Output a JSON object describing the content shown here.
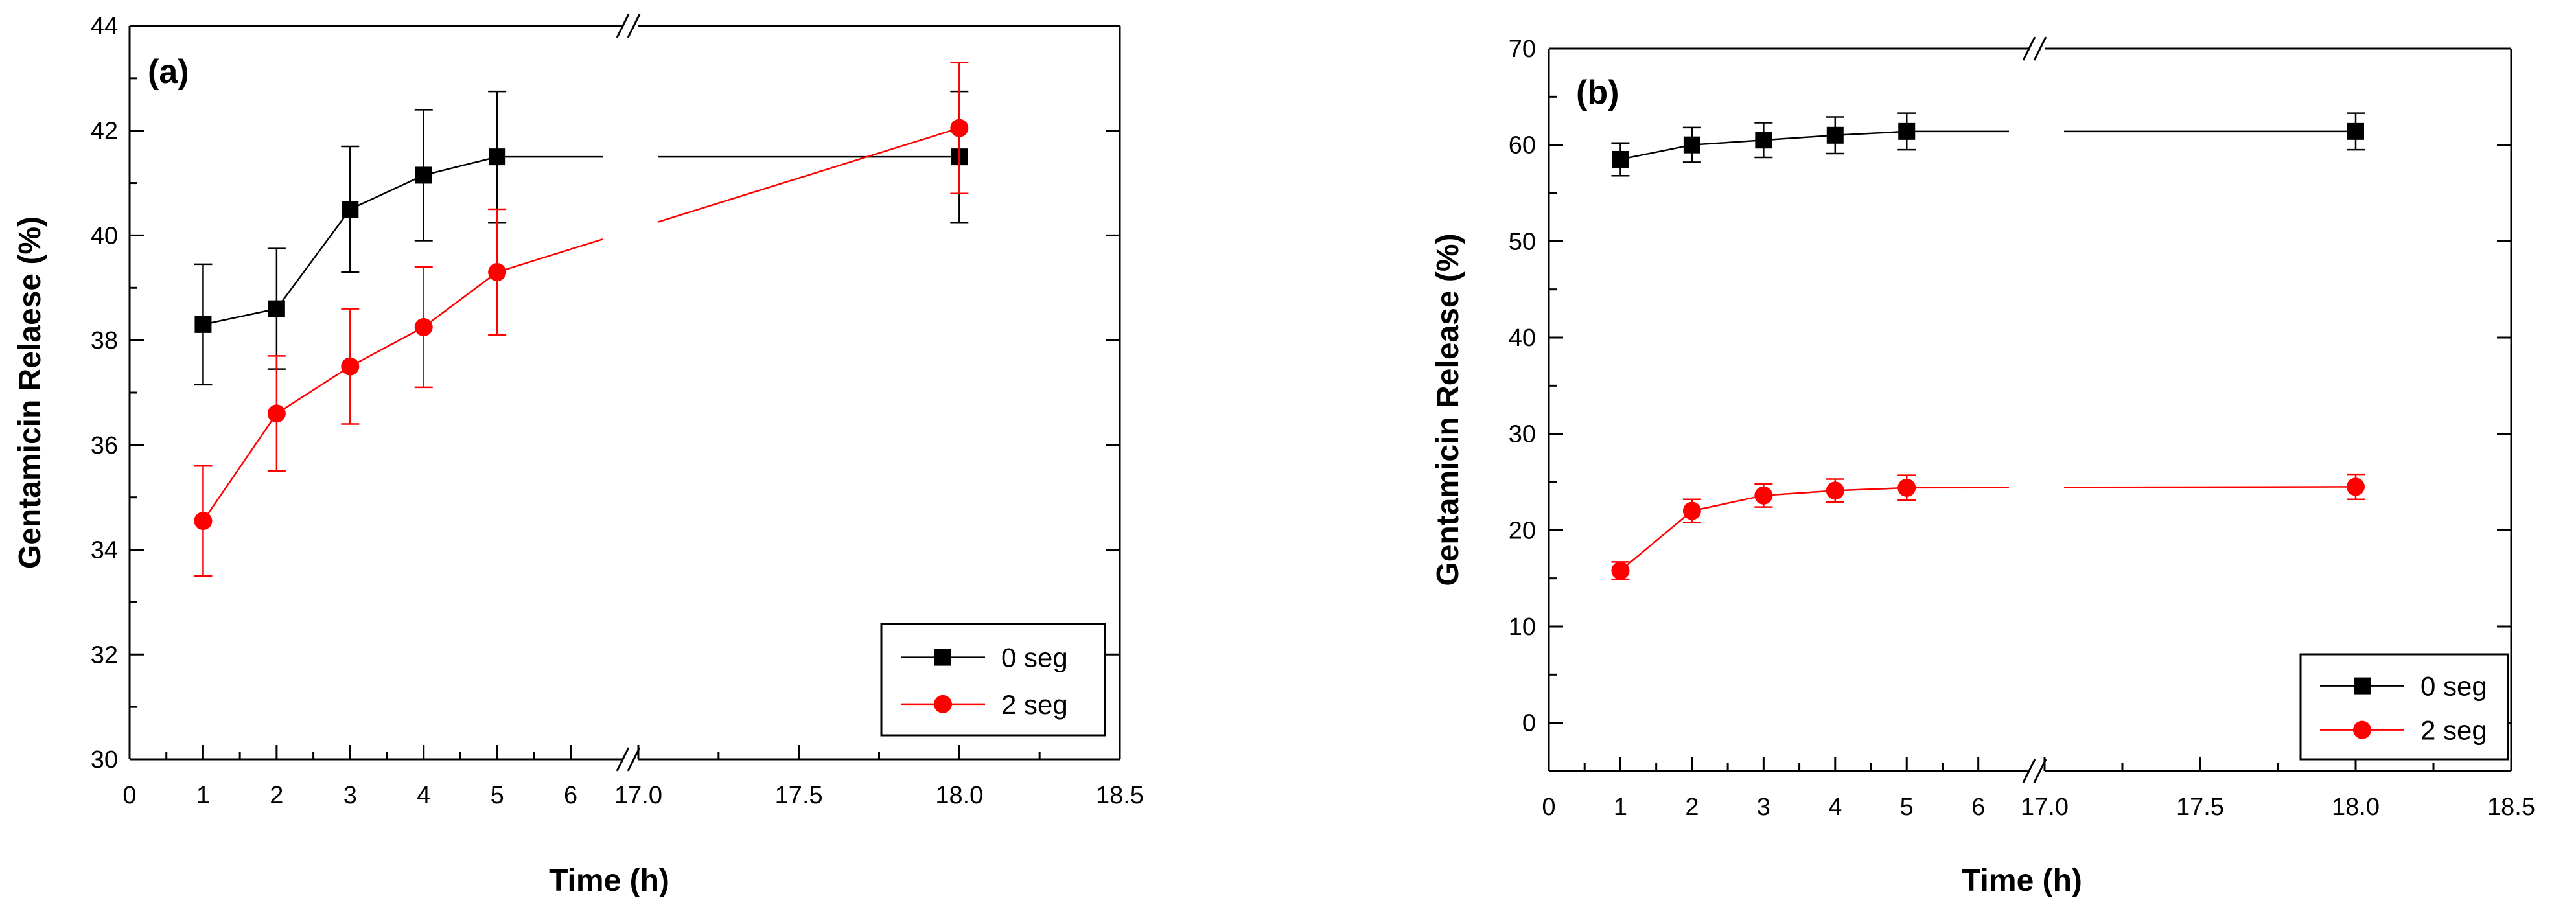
{
  "colors": {
    "series_0": "#000000",
    "series_1": "#ff0000",
    "axes": "#000000"
  },
  "chart_data": [
    {
      "type": "line",
      "panel_label": "(a)",
      "xlabel": "Time (h)",
      "ylabel": "Gentamicin Relaese (%)",
      "ylim": [
        30,
        44
      ],
      "y_ticks": [
        30,
        32,
        34,
        36,
        38,
        40,
        42,
        44
      ],
      "x_segments": [
        {
          "range": [
            0,
            6.7
          ],
          "ticks": [
            0,
            1,
            2,
            3,
            4,
            5,
            6
          ],
          "tick_labels": [
            "0",
            "1",
            "2",
            "3",
            "4",
            "5",
            "6"
          ]
        },
        {
          "range": [
            17.0,
            18.5
          ],
          "ticks": [
            17.0,
            17.5,
            18.0,
            18.5
          ],
          "tick_labels": [
            "17.0",
            "17.5",
            "18.0",
            "18.5"
          ]
        }
      ],
      "legend": {
        "position": "bottom-right"
      },
      "series": [
        {
          "name": "0 seg",
          "color": "#000000",
          "marker": "square",
          "x": [
            1,
            2,
            3,
            4,
            5,
            18
          ],
          "y": [
            38.3,
            38.6,
            40.5,
            41.15,
            41.5,
            41.5
          ],
          "err": [
            1.15,
            1.15,
            1.2,
            1.25,
            1.25,
            1.25
          ]
        },
        {
          "name": "2 seg",
          "color": "#ff0000",
          "marker": "circle",
          "x": [
            1,
            2,
            3,
            4,
            5,
            18
          ],
          "y": [
            34.55,
            36.6,
            37.5,
            38.25,
            39.3,
            42.05
          ],
          "err": [
            1.05,
            1.1,
            1.1,
            1.15,
            1.2,
            1.25
          ]
        }
      ]
    },
    {
      "type": "line",
      "panel_label": "(b)",
      "xlabel": "Time (h)",
      "ylabel": "Gentamicin Release (%)",
      "ylim": [
        -5,
        70
      ],
      "y_ticks": [
        0,
        10,
        20,
        30,
        40,
        50,
        60,
        70
      ],
      "x_segments": [
        {
          "range": [
            0,
            6.7
          ],
          "ticks": [
            0,
            1,
            2,
            3,
            4,
            5,
            6
          ],
          "tick_labels": [
            "0",
            "1",
            "2",
            "3",
            "4",
            "5",
            "6"
          ]
        },
        {
          "range": [
            17.0,
            18.5
          ],
          "ticks": [
            17.0,
            17.5,
            18.0,
            18.5
          ],
          "tick_labels": [
            "17.0",
            "17.5",
            "18.0",
            "18.5"
          ]
        }
      ],
      "legend": {
        "position": "bottom-right"
      },
      "series": [
        {
          "name": "0 seg",
          "color": "#000000",
          "marker": "square",
          "x": [
            1,
            2,
            3,
            4,
            5,
            18
          ],
          "y": [
            58.5,
            60.0,
            60.5,
            61.0,
            61.4,
            61.4
          ],
          "err": [
            1.7,
            1.8,
            1.8,
            1.9,
            1.9,
            1.9
          ]
        },
        {
          "name": "2 seg",
          "color": "#ff0000",
          "marker": "circle",
          "x": [
            1,
            2,
            3,
            4,
            5,
            18
          ],
          "y": [
            15.8,
            22.0,
            23.6,
            24.1,
            24.4,
            24.5
          ],
          "err": [
            0.9,
            1.2,
            1.2,
            1.2,
            1.3,
            1.3
          ]
        }
      ]
    }
  ]
}
